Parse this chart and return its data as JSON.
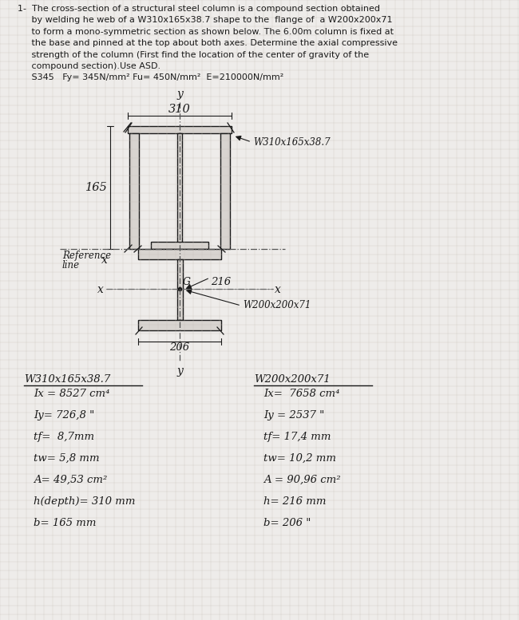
{
  "background_color": "#eeecea",
  "grid_color": "#c5bdb5",
  "line_color": "#1a1a1a",
  "label_W310": "W310x165x38.7",
  "label_W200": "W200x200x71",
  "col1_header": "W310x165x38.7",
  "col1_Ix": "Ix = 8527 cm⁴",
  "col1_Iy": "Iy= 726,8 \"",
  "col1_tf": "tf=  8,7mm",
  "col1_tw": "tw= 5,8 mm",
  "col1_A": "A= 49,53 cm²",
  "col1_h": "h(depth)= 310 mm",
  "col1_b": "b= 165 mm",
  "col2_header": "W200x200x71",
  "col2_Ix": "Ix=  7658 cm⁴",
  "col2_Iy": "Iy = 2537 \"",
  "col2_tf": "tf= 17,4 mm",
  "col2_tw": "tw= 10,2 mm",
  "col2_A": "A = 90,96 cm²",
  "col2_h": "h= 216 mm",
  "col2_b": "b= 206 \""
}
